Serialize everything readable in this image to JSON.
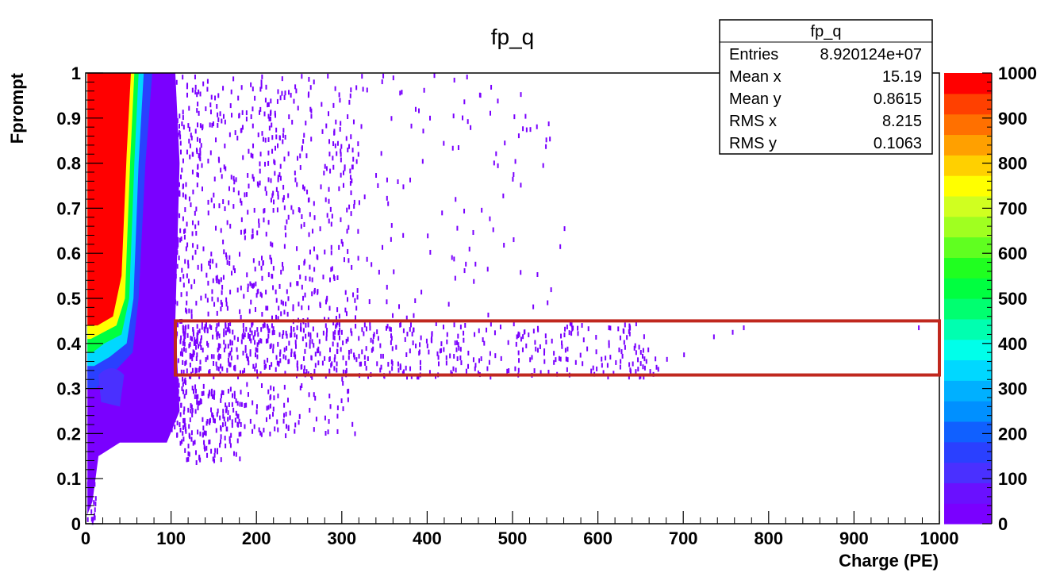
{
  "chart_data": {
    "type": "heatmap",
    "title": "fp_q",
    "xlabel": "Charge (PE)",
    "ylabel": "Fprompt",
    "xlim": [
      0,
      1000
    ],
    "ylim": [
      0,
      1
    ],
    "x_ticks": [
      "0",
      "100",
      "200",
      "300",
      "400",
      "500",
      "600",
      "700",
      "800",
      "900",
      "1000"
    ],
    "y_ticks": [
      "0",
      "0.1",
      "0.2",
      "0.3",
      "0.4",
      "0.5",
      "0.6",
      "0.7",
      "0.8",
      "0.9",
      "1"
    ],
    "colorbar": {
      "min": 0,
      "max": 1000,
      "ticks": [
        "0",
        "100",
        "200",
        "300",
        "400",
        "500",
        "600",
        "700",
        "800",
        "900",
        "1000"
      ],
      "colors": [
        "#7a00ff",
        "#6a10ff",
        "#4a30ff",
        "#2a40ff",
        "#1060ff",
        "#0090ff",
        "#00b0ff",
        "#00d8ff",
        "#00ffea",
        "#00ffb0",
        "#00ff70",
        "#00ff40",
        "#20ff20",
        "#60ff20",
        "#a0ff20",
        "#d0ff20",
        "#ffff00",
        "#ffd000",
        "#ffa000",
        "#ff7000",
        "#ff4000",
        "#ff0000"
      ]
    },
    "stats": {
      "name": "fp_q",
      "rows": [
        {
          "label": "Entries",
          "value": "8.920124e+07"
        },
        {
          "label": "Mean x",
          "value": "15.19"
        },
        {
          "label": "Mean y",
          "value": "0.8615"
        },
        {
          "label": "RMS x",
          "value": "8.215"
        },
        {
          "label": "RMS y",
          "value": "0.1063"
        }
      ]
    },
    "highlight_region": {
      "x": [
        105,
        1000
      ],
      "y": [
        0.33,
        0.45
      ],
      "color": "#c0281e"
    }
  }
}
